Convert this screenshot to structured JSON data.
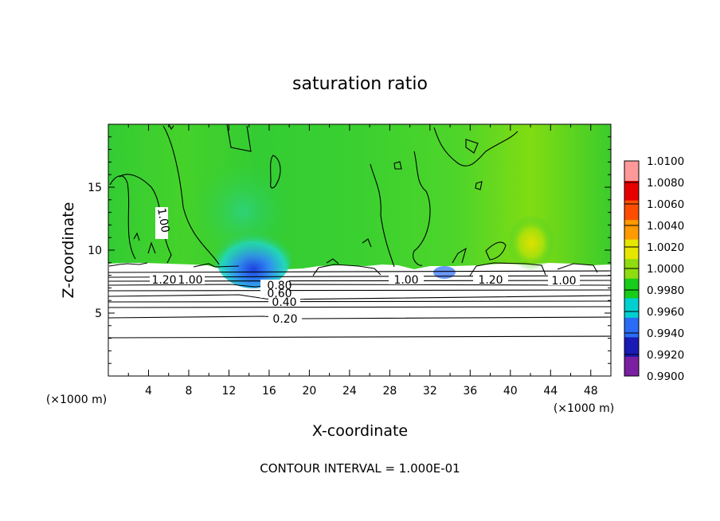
{
  "chart_data": {
    "type": "heatmap",
    "title": "saturation ratio",
    "xlabel": "X-coordinate",
    "ylabel": "Z-coordinate",
    "x_unit_left": "(×1000 m)",
    "x_unit_right": "(×1000 m)",
    "footer": "CONTOUR INTERVAL = 1.000E-01",
    "xlim": [
      0,
      50
    ],
    "ylim": [
      0,
      20
    ],
    "x_ticks": [
      "4",
      "8",
      "12",
      "16",
      "20",
      "24",
      "28",
      "32",
      "36",
      "40",
      "44",
      "48"
    ],
    "y_ticks": [
      "5",
      "10",
      "15"
    ],
    "colorbar": {
      "min": 0.99,
      "max": 1.01,
      "tick_labels": [
        "1.0100",
        "1.0080",
        "1.0060",
        "1.0040",
        "1.0020",
        "1.0000",
        "0.9980",
        "0.9960",
        "0.9940",
        "0.9920",
        "0.9900"
      ],
      "colors": [
        "#7a1fa2",
        "#1a1ab4",
        "#2a6cf5",
        "#00d0d0",
        "#19cc19",
        "#8fdc10",
        "#e6e600",
        "#ff9a00",
        "#ff4d00",
        "#e60000",
        "#ff9999"
      ]
    },
    "contour_interval": 0.1,
    "field_regions": [
      {
        "region": "upper domain (z > 9)",
        "value_range": [
          0.998,
          1.002
        ],
        "dominant_value": 1.0
      },
      {
        "region": "moist anomaly near x 12-18, z 8-9",
        "value_range": [
          0.992,
          0.996
        ]
      },
      {
        "region": "warm spot near x 42, z 10",
        "value_range": [
          1.002,
          1.003
        ]
      },
      {
        "region": "lower domain (z < 9)",
        "value_range": [
          0.0,
          1.2
        ],
        "note": "below color scale, contoured"
      }
    ],
    "contour_labels": [
      {
        "text": "1.00",
        "x": 5.5,
        "z": 12.2
      },
      {
        "text": "1.20",
        "x": 5.8,
        "z": 7.8
      },
      {
        "text": "1.00",
        "x": 8.3,
        "z": 7.8
      },
      {
        "text": "0.80",
        "x": 16.7,
        "z": 7.4
      },
      {
        "text": "0.60",
        "x": 16.7,
        "z": 6.7
      },
      {
        "text": "0.40",
        "x": 17.0,
        "z": 6.1
      },
      {
        "text": "0.20",
        "x": 17.0,
        "z": 4.6
      },
      {
        "text": "1.00",
        "x": 29.5,
        "z": 7.9
      },
      {
        "text": "1.20",
        "x": 38.2,
        "z": 7.9
      },
      {
        "text": "1.00",
        "x": 45.0,
        "z": 7.8
      }
    ]
  }
}
